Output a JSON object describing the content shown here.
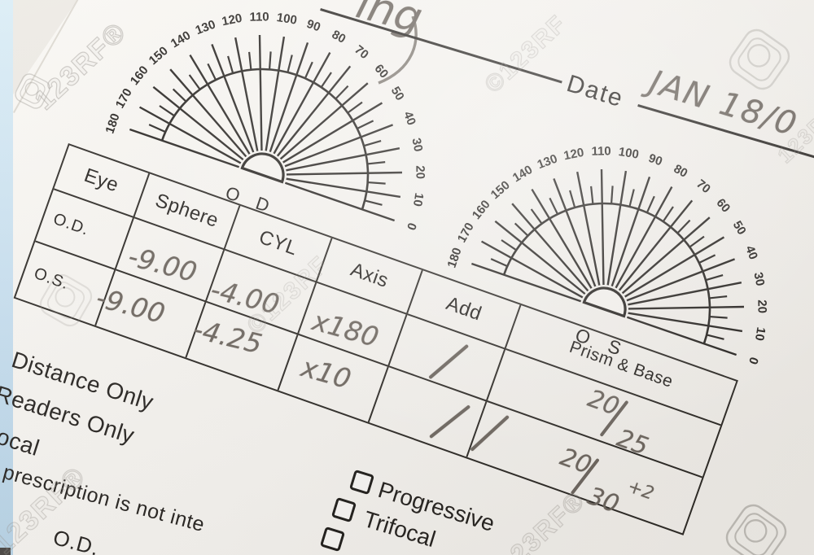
{
  "meta": {
    "watermark_text": "123RF",
    "watermark_text_reg": "123RF®",
    "watermark_text_c": "©123RF",
    "colors": {
      "paper": "#f5f3ef",
      "ink": "#262320",
      "pencil": "#6e6760",
      "side_strip": "#c7dff0"
    }
  },
  "header": {
    "name_fragment": "ing",
    "date_label": "Date",
    "date_value": "JAN 18/0"
  },
  "protractors": {
    "tick_labels": [
      0,
      10,
      20,
      30,
      40,
      50,
      60,
      70,
      80,
      90,
      100,
      110,
      120,
      130,
      140,
      150,
      160,
      170,
      180
    ],
    "minor_step": 5,
    "od_caption": "O D",
    "os_caption": "O S"
  },
  "table": {
    "headers": [
      "Eye",
      "Sphere",
      "CYL",
      "Axis",
      "Add",
      "Prism & Base"
    ],
    "rows": [
      {
        "eye": "O.D.",
        "sphere": "-9.00",
        "cyl": "-4.00",
        "axis": "x180",
        "add": "/",
        "acuity": {
          "top": "20",
          "bottom": "25",
          "note": ""
        }
      },
      {
        "eye": "O.S.",
        "sphere": "-9.00",
        "cyl": "-4.25",
        "axis": "x10",
        "add": "/",
        "acuity": {
          "top": "20",
          "bottom": "30",
          "note": "+2"
        }
      }
    ]
  },
  "options_left": [
    "Distance Only",
    "Readers Only",
    "Trifocal"
  ],
  "checkbox_options": [
    "Progressive",
    "Trifocal"
  ],
  "footer": {
    "disclaimer_fragment": "prescription is not inte",
    "od_label": "O.D."
  }
}
